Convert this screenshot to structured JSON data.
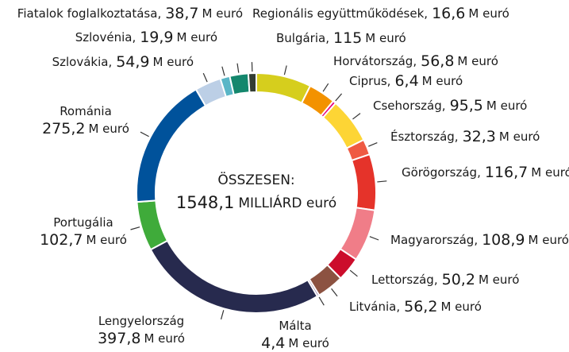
{
  "chart_data": {
    "type": "donut",
    "categories": [
      "Bulgária",
      "Horvátország",
      "Ciprus",
      "Csehország",
      "Észtország",
      "Görögország",
      "Magyarország",
      "Lettország",
      "Litvánia",
      "Málta",
      "Lengyelország",
      "Portugália",
      "Románia",
      "Szlovákia",
      "Szlovénia",
      "Fiatalok foglalkoztatása",
      "Regionális együttműködések"
    ],
    "values": [
      115,
      56.8,
      6.4,
      95.5,
      32.3,
      116.7,
      108.9,
      50.2,
      56.2,
      4.4,
      397.8,
      102.7,
      275.2,
      54.9,
      19.9,
      38.7,
      16.6
    ],
    "value_labels": [
      "115",
      "56,8",
      "6,4",
      "95,5",
      "32,3",
      "116,7",
      "108,9",
      "50,2",
      "56,2",
      "4,4",
      "397,8",
      "102,7",
      "275,2",
      "54,9",
      "19,9",
      "38,7",
      "16,6"
    ],
    "colors": [
      "#d6ce1d",
      "#f39200",
      "#e5007d",
      "#fdd535",
      "#ef5a43",
      "#e5332a",
      "#f07d88",
      "#cc0d2c",
      "#8c5241",
      "#6d4a8a",
      "#272a4e",
      "#3fab3a",
      "#00529b",
      "#bccfe6",
      "#5ab6c7",
      "#14876d",
      "#333d33"
    ],
    "unit": "M euró",
    "separator": ",",
    "center_label": "ÖSSZESEN:",
    "total_label": "1548,1",
    "total_unit": "MILLIÁRD euró"
  }
}
